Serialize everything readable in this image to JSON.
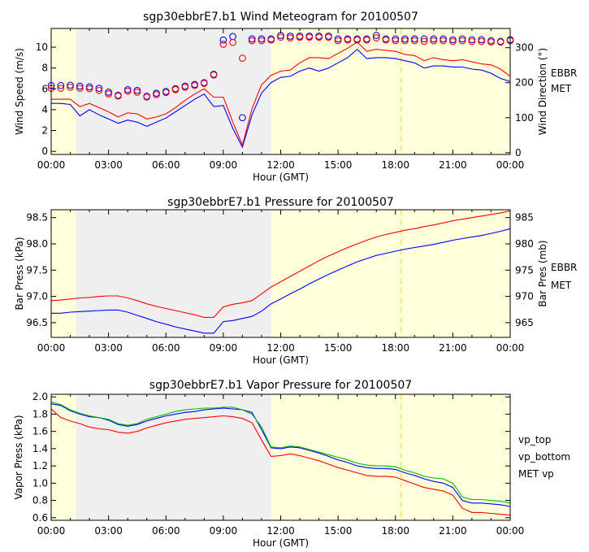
{
  "chart_data": [
    {
      "type": "line",
      "title": "sgp30ebbrE7.b1 Wind Meteogram for 20100507",
      "xlabel": "Hour (GMT)",
      "ylabel": "Wind Speed (m/s)",
      "ylabel_right": "Wind Direction (°)",
      "xlim": [
        0,
        24
      ],
      "ylim": [
        -0.3,
        11.8
      ],
      "ylim_right": [
        -5,
        355
      ],
      "x_ticks": [
        0,
        3,
        6,
        9,
        12,
        15,
        18,
        21,
        24
      ],
      "x_tick_labels": [
        "00:00",
        "03:00",
        "06:00",
        "09:00",
        "12:00",
        "15:00",
        "18:00",
        "21:00",
        "00:00"
      ],
      "y_ticks": [
        0,
        2,
        4,
        6,
        8,
        10
      ],
      "y_tick_labels": [
        "0",
        "2",
        "4",
        "6",
        "8",
        "10"
      ],
      "y_ticks_right": [
        0,
        100,
        200,
        300
      ],
      "y_tick_labels_right": [
        "0",
        "100",
        "200",
        "300"
      ],
      "night_shading": [
        {
          "from": 1.3,
          "to": 11.5,
          "color": "#efefef"
        }
      ],
      "day_shading_color": "#ffffdc",
      "marker_time": 18.3,
      "legend": [
        {
          "label": "EBBR",
          "color": "#0000ff"
        },
        {
          "label": "MET",
          "color": "#ff0000"
        }
      ],
      "x": [
        0,
        0.5,
        1,
        1.5,
        2,
        2.5,
        3,
        3.5,
        4,
        4.5,
        5,
        5.5,
        6,
        6.5,
        7,
        7.5,
        8,
        8.5,
        9,
        9.5,
        10,
        10.5,
        11,
        11.5,
        12,
        12.5,
        13,
        13.5,
        14,
        14.5,
        15,
        15.5,
        16,
        16.5,
        17,
        17.5,
        18,
        18.5,
        19,
        19.5,
        20,
        20.5,
        21,
        21.5,
        22,
        22.5,
        23,
        23.5,
        24
      ],
      "series": [
        {
          "name": "EBBR",
          "axis": "left",
          "kind": "line",
          "color": "#0000ff",
          "values": [
            4.6,
            4.6,
            4.5,
            3.4,
            4.0,
            3.5,
            3.1,
            2.7,
            3.0,
            2.8,
            2.4,
            2.8,
            3.2,
            3.8,
            4.4,
            5.0,
            5.5,
            4.3,
            4.4,
            2.2,
            0.4,
            3.5,
            5.6,
            6.6,
            7.1,
            7.2,
            7.7,
            8.0,
            7.7,
            8.0,
            8.5,
            9.0,
            9.8,
            8.9,
            9.0,
            9.0,
            8.9,
            8.7,
            8.5,
            8.0,
            8.2,
            8.2,
            8.1,
            8.1,
            7.9,
            7.8,
            7.5,
            7.0,
            6.7
          ]
        },
        {
          "name": "MET",
          "axis": "left",
          "kind": "line",
          "color": "#ff0000",
          "values": [
            5.0,
            5.0,
            5.0,
            4.3,
            4.6,
            4.2,
            3.8,
            3.3,
            3.7,
            3.6,
            3.1,
            3.3,
            3.6,
            4.2,
            4.9,
            5.5,
            6.0,
            5.2,
            5.2,
            2.8,
            0.6,
            4.1,
            6.4,
            7.3,
            7.7,
            7.8,
            8.5,
            9.0,
            9.0,
            8.9,
            9.4,
            9.9,
            10.5,
            9.6,
            9.8,
            9.7,
            9.6,
            9.3,
            9.2,
            8.7,
            9.0,
            8.8,
            8.7,
            8.8,
            8.6,
            8.4,
            8.3,
            7.9,
            7.2
          ]
        },
        {
          "name": "EBBR",
          "axis": "right",
          "kind": "circle",
          "color": "#0000ff",
          "values": [
            192,
            192,
            193,
            190,
            188,
            184,
            173,
            164,
            180,
            178,
            161,
            170,
            175,
            183,
            190,
            195,
            200,
            224,
            322,
            332,
            100,
            325,
            325,
            325,
            335,
            333,
            333,
            333,
            333,
            333,
            325,
            325,
            325,
            325,
            335,
            325,
            325,
            325,
            325,
            325,
            325,
            325,
            323,
            325,
            323,
            323,
            320,
            318,
            323
          ]
        },
        {
          "name": "MET",
          "axis": "right",
          "kind": "circle",
          "color": "#ff0000",
          "values": [
            184,
            184,
            187,
            184,
            183,
            178,
            168,
            162,
            176,
            173,
            159,
            166,
            172,
            180,
            187,
            192,
            198,
            222,
            310,
            315,
            270,
            320,
            320,
            322,
            330,
            328,
            330,
            330,
            330,
            330,
            320,
            322,
            322,
            322,
            328,
            322,
            320,
            320,
            320,
            318,
            320,
            320,
            318,
            320,
            318,
            318,
            316,
            316,
            320
          ]
        }
      ]
    },
    {
      "type": "line",
      "title": "sgp30ebbrE7.b1 Pressure for 20100507",
      "xlabel": "Hour (GMT)",
      "ylabel": "Bar Press (kPa)",
      "ylabel_right": "Bar Pres (mb)",
      "xlim": [
        0,
        24
      ],
      "ylim": [
        96.22,
        98.65
      ],
      "ylim_right": [
        962.2,
        986.5
      ],
      "x_ticks": [
        0,
        3,
        6,
        9,
        12,
        15,
        18,
        21,
        24
      ],
      "x_tick_labels": [
        "00:00",
        "03:00",
        "06:00",
        "09:00",
        "12:00",
        "15:00",
        "18:00",
        "21:00",
        "00:00"
      ],
      "y_ticks": [
        96.5,
        97.0,
        97.5,
        98.0,
        98.5
      ],
      "y_tick_labels": [
        "96.5",
        "97.0",
        "97.5",
        "98.0",
        "98.5"
      ],
      "y_ticks_right": [
        965,
        970,
        975,
        980,
        985
      ],
      "y_tick_labels_right": [
        "965",
        "970",
        "975",
        "980",
        "985"
      ],
      "night_shading": [
        {
          "from": 1.3,
          "to": 11.5,
          "color": "#efefef"
        }
      ],
      "day_shading_color": "#ffffdc",
      "marker_time": 18.3,
      "legend": [
        {
          "label": "EBBR",
          "color": "#0000ff"
        },
        {
          "label": "MET",
          "color": "#ff0000"
        }
      ],
      "x": [
        0,
        0.5,
        1,
        1.5,
        2,
        2.5,
        3,
        3.5,
        4,
        4.5,
        5,
        5.5,
        6,
        6.5,
        7,
        7.5,
        8,
        8.5,
        9,
        9.5,
        10,
        10.5,
        11,
        11.5,
        12,
        12.5,
        13,
        13.5,
        14,
        14.5,
        15,
        15.5,
        16,
        16.5,
        17,
        17.5,
        18,
        18.5,
        19,
        19.5,
        20,
        20.5,
        21,
        21.5,
        22,
        22.5,
        23,
        23.5,
        24
      ],
      "series": [
        {
          "name": "EBBR",
          "axis": "left",
          "kind": "line",
          "color": "#0000ff",
          "values": [
            96.68,
            96.68,
            96.7,
            96.71,
            96.72,
            96.73,
            96.74,
            96.74,
            96.7,
            96.64,
            96.58,
            96.52,
            96.47,
            96.42,
            96.38,
            96.34,
            96.3,
            96.3,
            96.52,
            96.54,
            96.58,
            96.62,
            96.72,
            96.86,
            96.95,
            97.05,
            97.14,
            97.24,
            97.33,
            97.42,
            97.5,
            97.58,
            97.66,
            97.72,
            97.78,
            97.82,
            97.86,
            97.9,
            97.93,
            97.96,
            97.99,
            98.03,
            98.07,
            98.1,
            98.13,
            98.16,
            98.2,
            98.24,
            98.29
          ]
        },
        {
          "name": "MET",
          "axis": "left",
          "kind": "line",
          "color": "#ff0000",
          "values": [
            96.92,
            96.93,
            96.95,
            96.97,
            96.98,
            97.0,
            97.01,
            97.01,
            96.97,
            96.92,
            96.86,
            96.81,
            96.77,
            96.73,
            96.69,
            96.65,
            96.6,
            96.6,
            96.8,
            96.85,
            96.88,
            96.92,
            97.05,
            97.18,
            97.28,
            97.38,
            97.48,
            97.58,
            97.68,
            97.77,
            97.85,
            97.93,
            98.0,
            98.07,
            98.13,
            98.18,
            98.22,
            98.26,
            98.29,
            98.33,
            98.36,
            98.4,
            98.44,
            98.47,
            98.5,
            98.53,
            98.56,
            98.59,
            98.63
          ]
        }
      ]
    },
    {
      "type": "line",
      "title": "sgp30ebbrE7.b1 Vapor Pressure for 20100507",
      "xlabel": "Hour (GMT)",
      "ylabel": "Vapor Press (kPa)",
      "xlim": [
        0,
        24
      ],
      "ylim": [
        0.57,
        2.03
      ],
      "x_ticks": [
        0,
        3,
        6,
        9,
        12,
        15,
        18,
        21,
        24
      ],
      "x_tick_labels": [
        "00:00",
        "03:00",
        "06:00",
        "09:00",
        "12:00",
        "15:00",
        "18:00",
        "21:00",
        "00:00"
      ],
      "y_ticks": [
        0.6,
        0.8,
        1.0,
        1.2,
        1.4,
        1.6,
        1.8,
        2.0
      ],
      "y_tick_labels": [
        "0.6",
        "0.8",
        "1.0",
        "1.2",
        "1.4",
        "1.6",
        "1.8",
        "2.0"
      ],
      "night_shading": [
        {
          "from": 1.3,
          "to": 11.5,
          "color": "#efefef"
        }
      ],
      "day_shading_color": "#ffffdc",
      "marker_time": 18.3,
      "legend": [
        {
          "label": "vp_top",
          "color": "#0000ff"
        },
        {
          "label": "vp_bottom",
          "color": "#00bb00"
        },
        {
          "label": "MET vp",
          "color": "#ff0000"
        }
      ],
      "x": [
        0,
        0.5,
        1,
        1.5,
        2,
        2.5,
        3,
        3.5,
        4,
        4.5,
        5,
        5.5,
        6,
        6.5,
        7,
        7.5,
        8,
        8.5,
        9,
        9.5,
        10,
        10.5,
        11,
        11.5,
        12,
        12.5,
        13,
        13.5,
        14,
        14.5,
        15,
        15.5,
        16,
        16.5,
        17,
        17.5,
        18,
        18.5,
        19,
        19.5,
        20,
        20.5,
        21,
        21.5,
        22,
        22.5,
        23,
        23.5,
        24
      ],
      "series": [
        {
          "name": "vp_top",
          "axis": "left",
          "kind": "line",
          "color": "#0000ff",
          "values": [
            1.92,
            1.9,
            1.84,
            1.8,
            1.77,
            1.76,
            1.73,
            1.68,
            1.66,
            1.68,
            1.72,
            1.75,
            1.78,
            1.8,
            1.82,
            1.83,
            1.85,
            1.86,
            1.87,
            1.86,
            1.85,
            1.82,
            1.62,
            1.41,
            1.4,
            1.42,
            1.41,
            1.38,
            1.35,
            1.31,
            1.27,
            1.24,
            1.2,
            1.18,
            1.17,
            1.17,
            1.16,
            1.12,
            1.09,
            1.05,
            1.02,
            1.0,
            0.95,
            0.8,
            0.77,
            0.77,
            0.76,
            0.75,
            0.73
          ]
        },
        {
          "name": "vp_bottom",
          "axis": "left",
          "kind": "line",
          "color": "#00bb00",
          "values": [
            1.94,
            1.91,
            1.85,
            1.81,
            1.78,
            1.76,
            1.74,
            1.69,
            1.67,
            1.69,
            1.74,
            1.77,
            1.8,
            1.83,
            1.85,
            1.86,
            1.87,
            1.87,
            1.88,
            1.88,
            1.85,
            1.8,
            1.65,
            1.42,
            1.41,
            1.43,
            1.42,
            1.39,
            1.36,
            1.33,
            1.3,
            1.27,
            1.23,
            1.21,
            1.2,
            1.2,
            1.19,
            1.15,
            1.12,
            1.08,
            1.06,
            1.05,
            1.0,
            0.84,
            0.81,
            0.81,
            0.8,
            0.79,
            0.77
          ]
        },
        {
          "name": "MET vp",
          "axis": "left",
          "kind": "line",
          "color": "#ff0000",
          "values": [
            1.86,
            1.76,
            1.72,
            1.69,
            1.65,
            1.63,
            1.62,
            1.59,
            1.58,
            1.6,
            1.64,
            1.67,
            1.7,
            1.72,
            1.74,
            1.75,
            1.76,
            1.77,
            1.78,
            1.77,
            1.75,
            1.7,
            1.5,
            1.31,
            1.32,
            1.34,
            1.32,
            1.29,
            1.26,
            1.22,
            1.18,
            1.15,
            1.12,
            1.09,
            1.08,
            1.08,
            1.07,
            1.03,
            0.99,
            0.95,
            0.93,
            0.91,
            0.86,
            0.71,
            0.66,
            0.66,
            0.65,
            0.64,
            0.63
          ]
        }
      ]
    }
  ]
}
